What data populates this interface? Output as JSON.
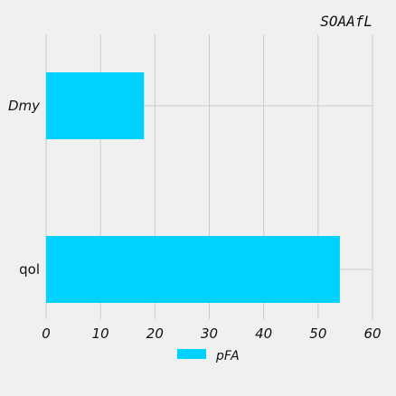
{
  "chart_data": {
    "type": "bar",
    "orientation": "horizontal",
    "title": "SOAAfL",
    "categories": [
      "Dmy",
      "qol"
    ],
    "series": [
      {
        "name": "pFA",
        "values": [
          18,
          54
        ],
        "color": "#00d2ff"
      }
    ],
    "xlim": [
      0,
      60
    ],
    "xticks": [
      "0",
      "10",
      "20",
      "30",
      "40",
      "50",
      "60"
    ],
    "xlabel": "",
    "ylabel": "",
    "grid": true,
    "legend_position": "bottom-center"
  },
  "colors": {
    "background": "#f0f0f0",
    "grid": "#cbcbcb",
    "bar": "#00d2ff"
  }
}
